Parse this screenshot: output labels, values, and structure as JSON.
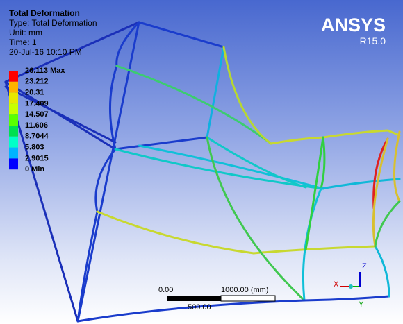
{
  "header": {
    "title": "Total Deformation",
    "type": "Type: Total Deformation",
    "unit": "Unit: mm",
    "time": "Time: 1",
    "date": "20-Jul-16 10:10 PM"
  },
  "legend": {
    "labels": [
      "26.113 Max",
      "23.212",
      "20.31",
      "17.409",
      "14.507",
      "11.606",
      "8.7044",
      "5.803",
      "2.9015",
      "0 Min"
    ],
    "colors": [
      "#ff0000",
      "#ffb400",
      "#e8e800",
      "#c8ff00",
      "#5aff00",
      "#00e050",
      "#00ffc8",
      "#00b4ff",
      "#0000ff"
    ]
  },
  "logo": {
    "name": "ANSYS",
    "version": "R15.0"
  },
  "scale_bar": {
    "start": "0.00",
    "end": "1000.00 (mm)",
    "mid": "500.00"
  },
  "triad": {
    "x": "X",
    "y": "Y",
    "z": "Z"
  }
}
